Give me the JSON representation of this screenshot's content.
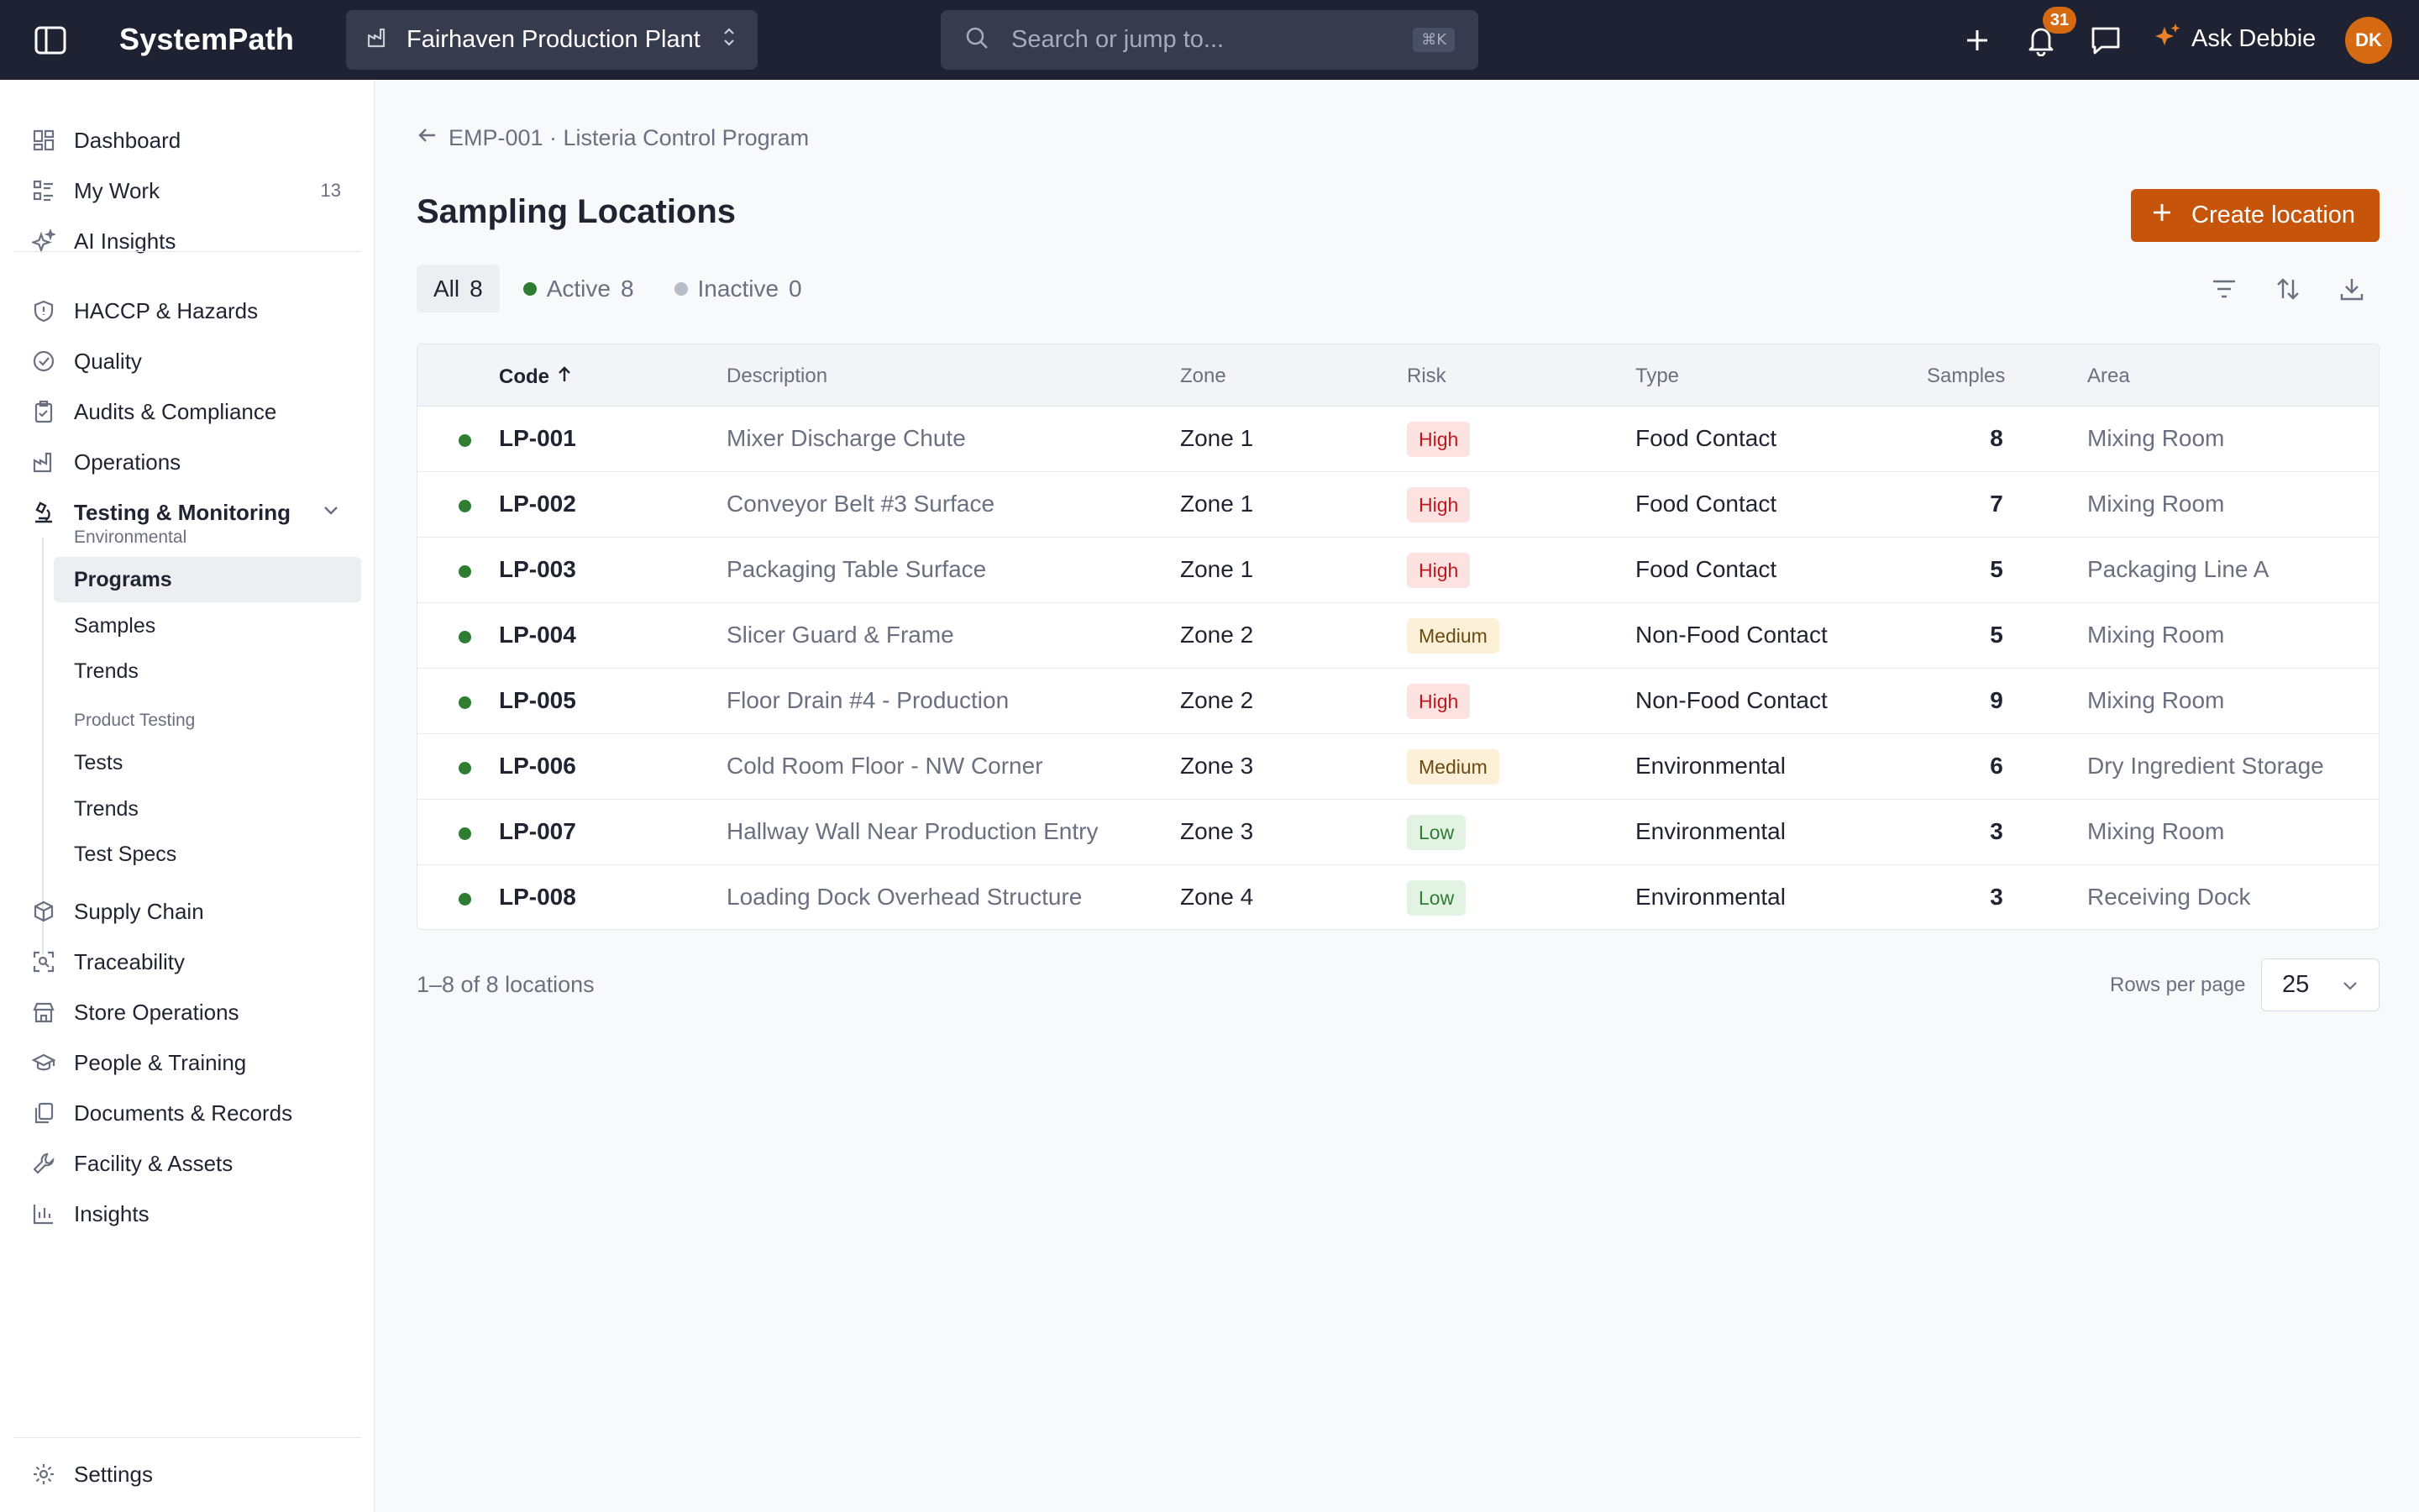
{
  "header": {
    "brand": "SystemPath",
    "plant": "Fairhaven Production Plant",
    "search_placeholder": "Search or jump to...",
    "search_shortcut": "⌘K",
    "notification_count": "31",
    "ask_label": "Ask Debbie",
    "avatar_initials": "DK"
  },
  "sidebar": {
    "top_items": [
      {
        "label": "Dashboard",
        "icon": "dashboard-icon"
      },
      {
        "label": "My Work",
        "icon": "list-icon",
        "count": "13"
      },
      {
        "label": "AI Insights",
        "icon": "sparkles-icon"
      }
    ],
    "items": [
      {
        "label": "HACCP & Hazards",
        "icon": "shield-icon"
      },
      {
        "label": "Quality",
        "icon": "check-circle-icon"
      },
      {
        "label": "Audits & Compliance",
        "icon": "clipboard-icon"
      },
      {
        "label": "Operations",
        "icon": "factory-icon"
      },
      {
        "label": "Testing & Monitoring",
        "icon": "microscope-icon"
      }
    ],
    "testing_sub": {
      "group1": "Environmental",
      "group1_items": [
        "Programs",
        "Samples",
        "Trends"
      ],
      "group2": "Product Testing",
      "group2_items": [
        "Tests",
        "Trends",
        "Test Specs"
      ]
    },
    "bottom_items": [
      {
        "label": "Supply Chain",
        "icon": "box-icon"
      },
      {
        "label": "Traceability",
        "icon": "scan-icon"
      },
      {
        "label": "Store Operations",
        "icon": "store-icon"
      },
      {
        "label": "People & Training",
        "icon": "graduation-cap-icon"
      },
      {
        "label": "Documents & Records",
        "icon": "documents-icon"
      },
      {
        "label": "Facility & Assets",
        "icon": "wrench-icon"
      },
      {
        "label": "Insights",
        "icon": "bar-chart-icon"
      }
    ],
    "settings": "Settings"
  },
  "main": {
    "breadcrumb": "EMP-001 · Listeria Control Program",
    "title": "Sampling Locations",
    "create_button": "Create location",
    "filters": [
      {
        "label": "All",
        "count": "8"
      },
      {
        "label": "Active",
        "count": "8"
      },
      {
        "label": "Inactive",
        "count": "0"
      }
    ],
    "columns": {
      "code": "Code",
      "description": "Description",
      "zone": "Zone",
      "risk": "Risk",
      "type": "Type",
      "samples": "Samples",
      "area": "Area"
    },
    "rows": [
      {
        "code": "LP-001",
        "description": "Mixer Discharge Chute",
        "zone": "Zone 1",
        "risk": "High",
        "type": "Food Contact",
        "samples": "8",
        "area": "Mixing Room"
      },
      {
        "code": "LP-002",
        "description": "Conveyor Belt #3 Surface",
        "zone": "Zone 1",
        "risk": "High",
        "type": "Food Contact",
        "samples": "7",
        "area": "Mixing Room"
      },
      {
        "code": "LP-003",
        "description": "Packaging Table Surface",
        "zone": "Zone 1",
        "risk": "High",
        "type": "Food Contact",
        "samples": "5",
        "area": "Packaging Line A"
      },
      {
        "code": "LP-004",
        "description": "Slicer Guard & Frame",
        "zone": "Zone 2",
        "risk": "Medium",
        "type": "Non-Food Contact",
        "samples": "5",
        "area": "Mixing Room"
      },
      {
        "code": "LP-005",
        "description": "Floor Drain #4 - Production",
        "zone": "Zone 2",
        "risk": "High",
        "type": "Non-Food Contact",
        "samples": "9",
        "area": "Mixing Room"
      },
      {
        "code": "LP-006",
        "description": "Cold Room Floor - NW Corner",
        "zone": "Zone 3",
        "risk": "Medium",
        "type": "Environmental",
        "samples": "6",
        "area": "Dry Ingredient Storage"
      },
      {
        "code": "LP-007",
        "description": "Hallway Wall Near Production Entry",
        "zone": "Zone 3",
        "risk": "Low",
        "type": "Environmental",
        "samples": "3",
        "area": "Mixing Room"
      },
      {
        "code": "LP-008",
        "description": "Loading Dock Overhead Structure",
        "zone": "Zone 4",
        "risk": "Low",
        "type": "Environmental",
        "samples": "3",
        "area": "Receiving Dock"
      }
    ],
    "footer_count": "1–8 of 8 locations",
    "rows_per_page_label": "Rows per page",
    "rows_per_page": "25"
  },
  "colors": {
    "topbar": "#1e2232",
    "accent": "#c6540a",
    "active_dot": "#2e7d32",
    "inactive_dot": "#b8bcc6"
  }
}
